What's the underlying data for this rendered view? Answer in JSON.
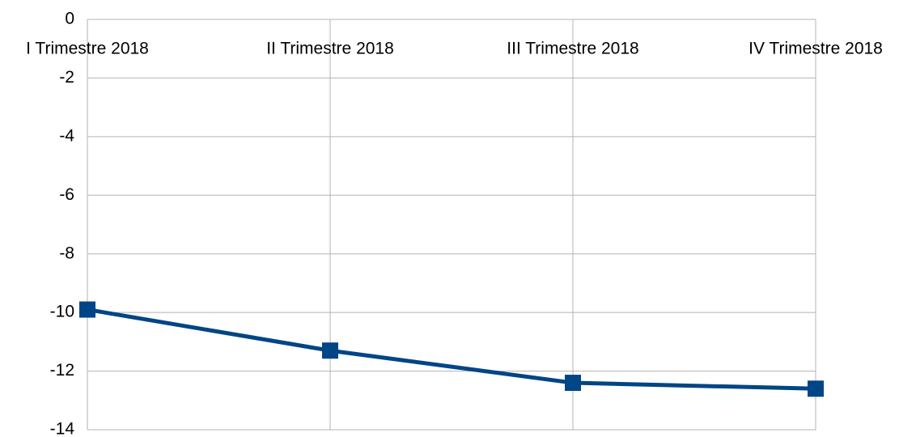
{
  "chart_data": {
    "type": "line",
    "categories": [
      "I Trimestre 2018",
      "II Trimestre 2018",
      "III Trimestre 2018",
      "IV Trimestre 2018"
    ],
    "series": [
      {
        "name": null,
        "color": "#004586",
        "values": [
          -9.9,
          -11.3,
          -12.4,
          -12.6
        ]
      }
    ],
    "ylim": [
      -14,
      0
    ],
    "yticks": [
      0,
      -2,
      -4,
      -6,
      -8,
      -10,
      -12,
      -14
    ],
    "grid": true
  }
}
